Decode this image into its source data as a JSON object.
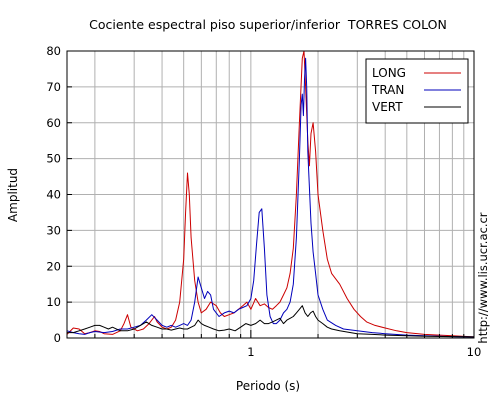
{
  "chart_data": {
    "type": "line",
    "title": "Cociente espectral piso superior/inferior  TORRES COLON",
    "xlabel": "Periodo (s)",
    "ylabel": "Amplitud",
    "x_scale": "log",
    "xlim": [
      0.15,
      10
    ],
    "ylim": [
      0,
      80
    ],
    "y_ticks": [
      0,
      10,
      20,
      30,
      40,
      50,
      60,
      70,
      80
    ],
    "x_tick_labels": [
      {
        "value": 1,
        "label": "1"
      },
      {
        "value": 10,
        "label": "10"
      }
    ],
    "grid": true,
    "legend_position": "top-right",
    "side_label": "http://www.lis.ucr.ac.cr",
    "series": [
      {
        "name": "LONG",
        "color": "#cc0000",
        "points": [
          [
            0.15,
            1
          ],
          [
            0.16,
            2.8
          ],
          [
            0.17,
            2.5
          ],
          [
            0.18,
            1.2
          ],
          [
            0.19,
            1.5
          ],
          [
            0.2,
            2
          ],
          [
            0.21,
            1.8
          ],
          [
            0.22,
            1.2
          ],
          [
            0.24,
            1
          ],
          [
            0.26,
            2
          ],
          [
            0.27,
            4
          ],
          [
            0.28,
            6.5
          ],
          [
            0.29,
            3
          ],
          [
            0.31,
            2
          ],
          [
            0.33,
            2.5
          ],
          [
            0.35,
            4
          ],
          [
            0.37,
            6
          ],
          [
            0.38,
            4.5
          ],
          [
            0.4,
            3
          ],
          [
            0.42,
            2.5
          ],
          [
            0.44,
            3
          ],
          [
            0.46,
            5
          ],
          [
            0.48,
            10
          ],
          [
            0.5,
            22
          ],
          [
            0.51,
            35
          ],
          [
            0.52,
            46
          ],
          [
            0.53,
            40
          ],
          [
            0.54,
            28
          ],
          [
            0.56,
            16
          ],
          [
            0.58,
            10
          ],
          [
            0.6,
            7
          ],
          [
            0.63,
            8
          ],
          [
            0.66,
            10
          ],
          [
            0.7,
            9
          ],
          [
            0.73,
            7
          ],
          [
            0.76,
            6
          ],
          [
            0.8,
            6.5
          ],
          [
            0.84,
            7
          ],
          [
            0.88,
            8
          ],
          [
            0.92,
            9
          ],
          [
            0.96,
            10
          ],
          [
            1.0,
            8
          ],
          [
            1.05,
            11
          ],
          [
            1.1,
            9
          ],
          [
            1.15,
            9.5
          ],
          [
            1.2,
            8.5
          ],
          [
            1.25,
            8
          ],
          [
            1.3,
            9
          ],
          [
            1.35,
            10
          ],
          [
            1.4,
            12
          ],
          [
            1.45,
            14
          ],
          [
            1.5,
            18
          ],
          [
            1.55,
            25
          ],
          [
            1.6,
            40
          ],
          [
            1.65,
            60
          ],
          [
            1.7,
            78
          ],
          [
            1.73,
            80
          ],
          [
            1.76,
            70
          ],
          [
            1.8,
            55
          ],
          [
            1.83,
            48
          ],
          [
            1.86,
            57
          ],
          [
            1.9,
            60
          ],
          [
            1.95,
            52
          ],
          [
            2.0,
            40
          ],
          [
            2.1,
            30
          ],
          [
            2.2,
            22
          ],
          [
            2.3,
            18
          ],
          [
            2.5,
            15
          ],
          [
            2.7,
            11
          ],
          [
            2.9,
            8
          ],
          [
            3.1,
            6
          ],
          [
            3.3,
            4.5
          ],
          [
            3.6,
            3.5
          ],
          [
            4.0,
            2.8
          ],
          [
            4.5,
            2
          ],
          [
            5.0,
            1.5
          ],
          [
            6.0,
            1
          ],
          [
            7.0,
            0.8
          ],
          [
            8.0,
            0.6
          ],
          [
            10.0,
            0.3
          ]
        ]
      },
      {
        "name": "TRAN",
        "color": "#0000bb",
        "points": [
          [
            0.15,
            2
          ],
          [
            0.16,
            1.5
          ],
          [
            0.17,
            1.2
          ],
          [
            0.18,
            1
          ],
          [
            0.19,
            1.5
          ],
          [
            0.2,
            1.8
          ],
          [
            0.22,
            1.5
          ],
          [
            0.24,
            1.8
          ],
          [
            0.26,
            2.5
          ],
          [
            0.28,
            2.5
          ],
          [
            0.3,
            3
          ],
          [
            0.32,
            3.5
          ],
          [
            0.34,
            5
          ],
          [
            0.36,
            6.5
          ],
          [
            0.38,
            5
          ],
          [
            0.4,
            3.5
          ],
          [
            0.42,
            3
          ],
          [
            0.44,
            3.5
          ],
          [
            0.46,
            3
          ],
          [
            0.48,
            3.5
          ],
          [
            0.5,
            4
          ],
          [
            0.52,
            3.5
          ],
          [
            0.54,
            5
          ],
          [
            0.56,
            10
          ],
          [
            0.58,
            17
          ],
          [
            0.6,
            14
          ],
          [
            0.62,
            11
          ],
          [
            0.64,
            13
          ],
          [
            0.66,
            12
          ],
          [
            0.68,
            8
          ],
          [
            0.72,
            6
          ],
          [
            0.76,
            7
          ],
          [
            0.8,
            7.5
          ],
          [
            0.84,
            7
          ],
          [
            0.88,
            8
          ],
          [
            0.92,
            8.5
          ],
          [
            0.96,
            9
          ],
          [
            1.0,
            11
          ],
          [
            1.03,
            16
          ],
          [
            1.06,
            26
          ],
          [
            1.09,
            35
          ],
          [
            1.12,
            36
          ],
          [
            1.15,
            25
          ],
          [
            1.18,
            12
          ],
          [
            1.22,
            6
          ],
          [
            1.26,
            4
          ],
          [
            1.3,
            4
          ],
          [
            1.35,
            5
          ],
          [
            1.4,
            7
          ],
          [
            1.45,
            8
          ],
          [
            1.5,
            10
          ],
          [
            1.55,
            15
          ],
          [
            1.6,
            28
          ],
          [
            1.65,
            50
          ],
          [
            1.68,
            65
          ],
          [
            1.7,
            68
          ],
          [
            1.72,
            62
          ],
          [
            1.74,
            72
          ],
          [
            1.76,
            78
          ],
          [
            1.78,
            70
          ],
          [
            1.8,
            52
          ],
          [
            1.83,
            42
          ],
          [
            1.86,
            32
          ],
          [
            1.9,
            24
          ],
          [
            1.95,
            18
          ],
          [
            2.0,
            12
          ],
          [
            2.1,
            8
          ],
          [
            2.2,
            5
          ],
          [
            2.4,
            3.5
          ],
          [
            2.6,
            2.5
          ],
          [
            3.0,
            2
          ],
          [
            3.5,
            1.5
          ],
          [
            4.0,
            1.2
          ],
          [
            5.0,
            0.8
          ],
          [
            6.0,
            0.6
          ],
          [
            8.0,
            0.4
          ],
          [
            10.0,
            0.3
          ]
        ]
      },
      {
        "name": "VERT",
        "color": "#000000",
        "points": [
          [
            0.15,
            1.5
          ],
          [
            0.16,
            1.5
          ],
          [
            0.17,
            2
          ],
          [
            0.18,
            2.5
          ],
          [
            0.19,
            3
          ],
          [
            0.2,
            3.5
          ],
          [
            0.21,
            3.5
          ],
          [
            0.22,
            3
          ],
          [
            0.23,
            2.5
          ],
          [
            0.24,
            3
          ],
          [
            0.26,
            2
          ],
          [
            0.28,
            2
          ],
          [
            0.3,
            2.5
          ],
          [
            0.32,
            3.5
          ],
          [
            0.34,
            4.5
          ],
          [
            0.36,
            3.5
          ],
          [
            0.38,
            3
          ],
          [
            0.4,
            2.5
          ],
          [
            0.42,
            2.5
          ],
          [
            0.44,
            2.2
          ],
          [
            0.46,
            2.5
          ],
          [
            0.48,
            2.8
          ],
          [
            0.5,
            2.5
          ],
          [
            0.52,
            2.5
          ],
          [
            0.54,
            3
          ],
          [
            0.56,
            3.5
          ],
          [
            0.58,
            5
          ],
          [
            0.6,
            4
          ],
          [
            0.62,
            3.5
          ],
          [
            0.65,
            3
          ],
          [
            0.68,
            2.5
          ],
          [
            0.72,
            2
          ],
          [
            0.76,
            2.2
          ],
          [
            0.8,
            2.5
          ],
          [
            0.85,
            2
          ],
          [
            0.9,
            3
          ],
          [
            0.95,
            4
          ],
          [
            1.0,
            3.5
          ],
          [
            1.05,
            4
          ],
          [
            1.1,
            5
          ],
          [
            1.15,
            4
          ],
          [
            1.2,
            4
          ],
          [
            1.25,
            4.5
          ],
          [
            1.3,
            5
          ],
          [
            1.35,
            5.5
          ],
          [
            1.4,
            4
          ],
          [
            1.45,
            5
          ],
          [
            1.5,
            5.5
          ],
          [
            1.55,
            6
          ],
          [
            1.6,
            7
          ],
          [
            1.65,
            8
          ],
          [
            1.7,
            9
          ],
          [
            1.75,
            7
          ],
          [
            1.8,
            6
          ],
          [
            1.85,
            7
          ],
          [
            1.9,
            7.5
          ],
          [
            1.95,
            6
          ],
          [
            2.0,
            5
          ],
          [
            2.1,
            4
          ],
          [
            2.2,
            3
          ],
          [
            2.3,
            2.5
          ],
          [
            2.5,
            2
          ],
          [
            2.8,
            1.5
          ],
          [
            3.0,
            1.2
          ],
          [
            3.5,
            1
          ],
          [
            4.0,
            0.8
          ],
          [
            5.0,
            0.6
          ],
          [
            6.0,
            0.5
          ],
          [
            8.0,
            0.4
          ],
          [
            10.0,
            0.3
          ]
        ]
      }
    ]
  }
}
